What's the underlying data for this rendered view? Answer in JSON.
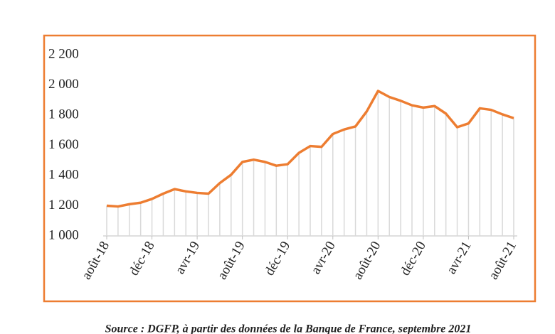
{
  "chart_data": {
    "type": "line",
    "source": "Source : DGFP, à partir des données de la Banque de France, septembre 2021",
    "categories": [
      "août-18",
      null,
      null,
      null,
      "déc-18",
      null,
      null,
      null,
      "avr-19",
      null,
      null,
      null,
      "août-19",
      null,
      null,
      null,
      "déc-19",
      null,
      null,
      null,
      "avr-20",
      null,
      null,
      null,
      "août-20",
      null,
      null,
      null,
      "déc-20",
      null,
      null,
      null,
      "avr-21",
      null,
      null,
      null,
      "août-21"
    ],
    "values": [
      1200,
      1195,
      1210,
      1220,
      1245,
      1280,
      1310,
      1295,
      1285,
      1280,
      1350,
      1405,
      1490,
      1505,
      1490,
      1465,
      1475,
      1550,
      1595,
      1590,
      1675,
      1705,
      1725,
      1825,
      1960,
      1920,
      1895,
      1865,
      1850,
      1860,
      1810,
      1720,
      1745,
      1845,
      1835,
      1805,
      1780
    ],
    "color": "#ed7d31",
    "drop_line_color": "#d9d9d9",
    "frame_color": "#ed7d31",
    "ylim": [
      1000,
      2200
    ],
    "yticks": [
      {
        "value": 1000,
        "label": "1 000"
      },
      {
        "value": 1200,
        "label": "1 200"
      },
      {
        "value": 1400,
        "label": "1 400"
      },
      {
        "value": 1600,
        "label": "1 600"
      },
      {
        "value": 1800,
        "label": "1 800"
      },
      {
        "value": 2000,
        "label": "2 000"
      },
      {
        "value": 2200,
        "label": "2 200"
      }
    ]
  }
}
